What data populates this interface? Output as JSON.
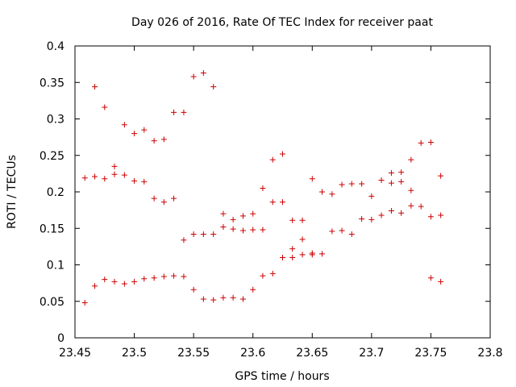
{
  "chart_data": {
    "type": "scatter",
    "title": "Day 026 of 2016, Rate Of TEC Index for receiver paat",
    "xlabel": "GPS time / hours",
    "ylabel": "ROTI / TECUs",
    "xlim": [
      23.45,
      23.8
    ],
    "ylim": [
      0,
      0.4
    ],
    "xticks": [
      23.45,
      23.5,
      23.55,
      23.6,
      23.65,
      23.7,
      23.75,
      23.8
    ],
    "xtick_labels": [
      "23.45",
      "23.5",
      "23.55",
      "23.6",
      "23.65",
      "23.7",
      "23.75",
      "23.8"
    ],
    "yticks": [
      0,
      0.05,
      0.1,
      0.15,
      0.2,
      0.25,
      0.3,
      0.35,
      0.4
    ],
    "ytick_labels": [
      "0",
      "0.05",
      "0.1",
      "0.15",
      "0.2",
      "0.25",
      "0.3",
      "0.35",
      "0.4"
    ],
    "marker": "+",
    "color": "#cc0000",
    "series": [
      {
        "name": "ROTI",
        "points": [
          [
            23.4583,
            0.219
          ],
          [
            23.4583,
            0.048
          ],
          [
            23.4667,
            0.344
          ],
          [
            23.4667,
            0.221
          ],
          [
            23.4667,
            0.071
          ],
          [
            23.475,
            0.316
          ],
          [
            23.475,
            0.218
          ],
          [
            23.475,
            0.08
          ],
          [
            23.4833,
            0.235
          ],
          [
            23.4833,
            0.224
          ],
          [
            23.4833,
            0.077
          ],
          [
            23.4917,
            0.292
          ],
          [
            23.4917,
            0.223
          ],
          [
            23.4917,
            0.074
          ],
          [
            23.5,
            0.28
          ],
          [
            23.5,
            0.215
          ],
          [
            23.5,
            0.077
          ],
          [
            23.5083,
            0.285
          ],
          [
            23.5083,
            0.214
          ],
          [
            23.5083,
            0.081
          ],
          [
            23.5167,
            0.27
          ],
          [
            23.5167,
            0.191
          ],
          [
            23.5167,
            0.082
          ],
          [
            23.525,
            0.272
          ],
          [
            23.525,
            0.186
          ],
          [
            23.525,
            0.084
          ],
          [
            23.5333,
            0.309
          ],
          [
            23.5333,
            0.191
          ],
          [
            23.5333,
            0.085
          ],
          [
            23.5417,
            0.309
          ],
          [
            23.5417,
            0.134
          ],
          [
            23.5417,
            0.084
          ],
          [
            23.55,
            0.358
          ],
          [
            23.55,
            0.142
          ],
          [
            23.55,
            0.066
          ],
          [
            23.5583,
            0.363
          ],
          [
            23.5583,
            0.142
          ],
          [
            23.5583,
            0.053
          ],
          [
            23.5667,
            0.344
          ],
          [
            23.5667,
            0.142
          ],
          [
            23.5667,
            0.052
          ],
          [
            23.575,
            0.17
          ],
          [
            23.575,
            0.152
          ],
          [
            23.575,
            0.055
          ],
          [
            23.5833,
            0.162
          ],
          [
            23.5833,
            0.149
          ],
          [
            23.5833,
            0.055
          ],
          [
            23.5917,
            0.167
          ],
          [
            23.5917,
            0.147
          ],
          [
            23.5917,
            0.053
          ],
          [
            23.6,
            0.17
          ],
          [
            23.6,
            0.148
          ],
          [
            23.6,
            0.066
          ],
          [
            23.6083,
            0.205
          ],
          [
            23.6083,
            0.148
          ],
          [
            23.6083,
            0.085
          ],
          [
            23.6167,
            0.244
          ],
          [
            23.6167,
            0.186
          ],
          [
            23.6167,
            0.088
          ],
          [
            23.625,
            0.252
          ],
          [
            23.625,
            0.186
          ],
          [
            23.625,
            0.11
          ],
          [
            23.6333,
            0.161
          ],
          [
            23.6333,
            0.122
          ],
          [
            23.6333,
            0.11
          ],
          [
            23.6417,
            0.161
          ],
          [
            23.6417,
            0.135
          ],
          [
            23.6417,
            0.114
          ],
          [
            23.65,
            0.218
          ],
          [
            23.65,
            0.116
          ],
          [
            23.65,
            0.114
          ],
          [
            23.6583,
            0.2
          ],
          [
            23.6583,
            0.115
          ],
          [
            23.6667,
            0.197
          ],
          [
            23.6667,
            0.146
          ],
          [
            23.675,
            0.21
          ],
          [
            23.675,
            0.147
          ],
          [
            23.6833,
            0.211
          ],
          [
            23.6833,
            0.142
          ],
          [
            23.6917,
            0.211
          ],
          [
            23.6917,
            0.163
          ],
          [
            23.7,
            0.194
          ],
          [
            23.7,
            0.162
          ],
          [
            23.7083,
            0.216
          ],
          [
            23.7083,
            0.168
          ],
          [
            23.7167,
            0.226
          ],
          [
            23.7167,
            0.212
          ],
          [
            23.7167,
            0.174
          ],
          [
            23.725,
            0.227
          ],
          [
            23.725,
            0.214
          ],
          [
            23.725,
            0.171
          ],
          [
            23.7333,
            0.244
          ],
          [
            23.7333,
            0.202
          ],
          [
            23.7333,
            0.181
          ],
          [
            23.7417,
            0.267
          ],
          [
            23.7417,
            0.18
          ],
          [
            23.75,
            0.268
          ],
          [
            23.75,
            0.166
          ],
          [
            23.75,
            0.082
          ],
          [
            23.7583,
            0.222
          ],
          [
            23.7583,
            0.168
          ],
          [
            23.7583,
            0.077
          ]
        ]
      }
    ]
  }
}
